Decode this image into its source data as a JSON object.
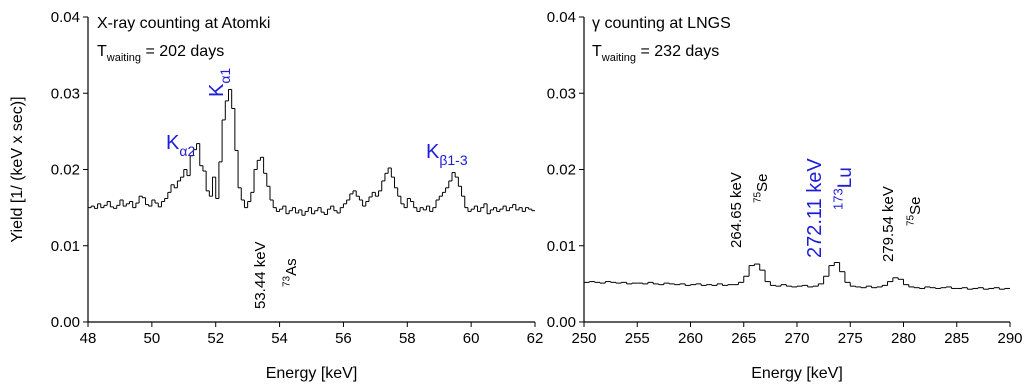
{
  "chart_data": [
    {
      "type": "histogram",
      "title": "X-ray counting at Atomki",
      "subtitle": {
        "main": "T",
        "sub": "waiting",
        "after": " = 202 days"
      },
      "xlabel": "Energy [keV]",
      "ylabel": "Yield [1/ (keV x sec)]",
      "color": "#000000",
      "xlim": [
        48,
        62
      ],
      "xticks": [
        48,
        50,
        52,
        54,
        56,
        58,
        60,
        62
      ],
      "ylim": [
        0,
        0.04
      ],
      "yticks": [
        {
          "value": 0,
          "label": "0.00"
        },
        {
          "value": 0.01,
          "label": "0.01"
        },
        {
          "value": 0.02,
          "label": "0.02"
        },
        {
          "value": 0.03,
          "label": "0.03"
        },
        {
          "value": 0.04,
          "label": "0.04"
        }
      ],
      "bins": [
        48.0,
        48.1,
        48.2,
        48.3,
        48.4,
        48.5,
        48.6,
        48.7,
        48.8,
        48.9,
        49.0,
        49.1,
        49.2,
        49.3,
        49.4,
        49.5,
        49.6,
        49.7,
        49.8,
        49.9,
        50.0,
        50.1,
        50.2,
        50.3,
        50.4,
        50.5,
        50.6,
        50.7,
        50.8,
        50.9,
        51.0,
        51.1,
        51.2,
        51.3,
        51.4,
        51.5,
        51.6,
        51.7,
        51.8,
        51.9,
        52.0,
        52.1,
        52.2,
        52.3,
        52.4,
        52.5,
        52.6,
        52.7,
        52.8,
        52.9,
        53.0,
        53.1,
        53.2,
        53.3,
        53.4,
        53.5,
        53.6,
        53.7,
        53.8,
        53.9,
        54.0,
        54.1,
        54.2,
        54.3,
        54.4,
        54.5,
        54.6,
        54.7,
        54.8,
        54.9,
        55.0,
        55.1,
        55.2,
        55.3,
        55.4,
        55.5,
        55.6,
        55.7,
        55.8,
        55.9,
        56.0,
        56.1,
        56.2,
        56.3,
        56.4,
        56.5,
        56.6,
        56.7,
        56.8,
        56.9,
        57.0,
        57.1,
        57.2,
        57.3,
        57.4,
        57.5,
        57.6,
        57.7,
        57.8,
        57.9,
        58.0,
        58.1,
        58.2,
        58.3,
        58.4,
        58.5,
        58.6,
        58.7,
        58.8,
        58.9,
        59.0,
        59.1,
        59.2,
        59.3,
        59.4,
        59.5,
        59.6,
        59.7,
        59.8,
        59.9,
        60.0,
        60.1,
        60.2,
        60.3,
        60.4,
        60.5,
        60.6,
        60.7,
        60.8,
        60.9,
        61.0,
        61.1,
        61.2,
        61.3,
        61.4,
        61.5,
        61.6,
        61.7,
        61.8,
        61.9,
        62.0
      ],
      "values": [
        0.015,
        0.0152,
        0.0149,
        0.0155,
        0.015,
        0.0153,
        0.0158,
        0.0151,
        0.0149,
        0.0153,
        0.016,
        0.0152,
        0.0155,
        0.0158,
        0.015,
        0.0156,
        0.0165,
        0.0163,
        0.0154,
        0.0152,
        0.016,
        0.0156,
        0.0151,
        0.0158,
        0.0162,
        0.017,
        0.018,
        0.0176,
        0.0185,
        0.019,
        0.02,
        0.0192,
        0.0218,
        0.0226,
        0.0234,
        0.0205,
        0.0198,
        0.0172,
        0.0165,
        0.019,
        0.0162,
        0.021,
        0.0265,
        0.029,
        0.0305,
        0.028,
        0.0225,
        0.0176,
        0.016,
        0.015,
        0.0158,
        0.017,
        0.02,
        0.0212,
        0.0216,
        0.0195,
        0.0178,
        0.016,
        0.015,
        0.0145,
        0.0148,
        0.0152,
        0.0142,
        0.0146,
        0.015,
        0.0143,
        0.0147,
        0.014,
        0.0145,
        0.015,
        0.0142,
        0.0146,
        0.015,
        0.0144,
        0.0141,
        0.0148,
        0.0152,
        0.0146,
        0.0143,
        0.015,
        0.0155,
        0.016,
        0.0168,
        0.0172,
        0.0165,
        0.016,
        0.0152,
        0.0158,
        0.0164,
        0.017,
        0.0165,
        0.0172,
        0.0185,
        0.0195,
        0.0202,
        0.019,
        0.0176,
        0.0165,
        0.0155,
        0.015,
        0.0162,
        0.0158,
        0.015,
        0.0145,
        0.015,
        0.0147,
        0.0152,
        0.0145,
        0.015,
        0.016,
        0.0165,
        0.017,
        0.0176,
        0.0185,
        0.0196,
        0.019,
        0.0178,
        0.0165,
        0.015,
        0.0145,
        0.0148,
        0.0152,
        0.0145,
        0.015,
        0.0155,
        0.0142,
        0.0147,
        0.015,
        0.0145,
        0.0148,
        0.0152,
        0.0146,
        0.015,
        0.0154,
        0.0147,
        0.015,
        0.0145,
        0.015,
        0.0148,
        0.0146
      ],
      "annotations": [
        {
          "color": "#1c1cd9",
          "parts": [
            {
              "text": "K"
            },
            {
              "text": "α2",
              "shift": "sub"
            }
          ]
        },
        {
          "color": "#1c1cd9",
          "parts": [
            {
              "text": "K"
            },
            {
              "text": "α1",
              "shift": "sub"
            }
          ]
        },
        {
          "color": "#1c1cd9",
          "parts": [
            {
              "text": "K"
            },
            {
              "text": "β1-3",
              "shift": "sub"
            }
          ]
        },
        {
          "color": "#000000",
          "parts": [
            {
              "text": "53.44 keV"
            }
          ]
        },
        {
          "color": "#000000",
          "parts": [
            {
              "text": "73",
              "shift": "sup"
            },
            {
              "text": "As"
            }
          ]
        }
      ]
    },
    {
      "type": "histogram",
      "title": "γ counting at LNGS",
      "subtitle": {
        "main": "T",
        "sub": "waiting",
        "after": " = 232 days"
      },
      "xlabel": "Energy [keV]",
      "color": "#000000",
      "xlim": [
        250,
        290
      ],
      "xticks": [
        250,
        255,
        260,
        265,
        270,
        275,
        280,
        285,
        290
      ],
      "ylim": [
        0,
        0.04
      ],
      "yticks": [
        {
          "value": 0,
          "label": "0.00"
        },
        {
          "value": 0.01,
          "label": "0.01"
        },
        {
          "value": 0.02,
          "label": "0.02"
        },
        {
          "value": 0.03,
          "label": "0.03"
        },
        {
          "value": 0.04,
          "label": "0.04"
        }
      ],
      "bins": [
        250,
        250.5,
        251,
        251.5,
        252,
        252.5,
        253,
        253.5,
        254,
        254.5,
        255,
        255.5,
        256,
        256.5,
        257,
        257.5,
        258,
        258.5,
        259,
        259.5,
        260,
        260.5,
        261,
        261.5,
        262,
        262.5,
        263,
        263.5,
        264,
        264.5,
        265,
        265.5,
        266,
        266.5,
        267,
        267.5,
        268,
        268.5,
        269,
        269.5,
        270,
        270.5,
        271,
        271.5,
        272,
        272.5,
        273,
        273.5,
        274,
        274.5,
        275,
        275.5,
        276,
        276.5,
        277,
        277.5,
        278,
        278.5,
        279,
        279.5,
        280,
        280.5,
        281,
        281.5,
        282,
        282.5,
        283,
        283.5,
        284,
        284.5,
        285,
        285.5,
        286,
        286.5,
        287,
        287.5,
        288,
        288.5,
        289,
        289.5,
        290
      ],
      "values": [
        0.0052,
        0.0053,
        0.0052,
        0.0051,
        0.0053,
        0.0052,
        0.0051,
        0.0052,
        0.005,
        0.0051,
        0.0051,
        0.005,
        0.0052,
        0.005,
        0.0049,
        0.0051,
        0.005,
        0.0049,
        0.005,
        0.0048,
        0.0049,
        0.005,
        0.0048,
        0.0049,
        0.0048,
        0.005,
        0.0048,
        0.0049,
        0.0049,
        0.0052,
        0.006,
        0.0074,
        0.0076,
        0.0068,
        0.0053,
        0.0048,
        0.0047,
        0.0049,
        0.0047,
        0.0046,
        0.0047,
        0.0048,
        0.0046,
        0.0047,
        0.005,
        0.006,
        0.0074,
        0.0078,
        0.0066,
        0.0052,
        0.0047,
        0.0046,
        0.0045,
        0.0047,
        0.0045,
        0.0046,
        0.0048,
        0.0053,
        0.0058,
        0.0056,
        0.0049,
        0.0046,
        0.0045,
        0.0044,
        0.0046,
        0.0045,
        0.0044,
        0.0045,
        0.0046,
        0.0044,
        0.0044,
        0.0045,
        0.0043,
        0.0044,
        0.0045,
        0.0043,
        0.0044,
        0.0045,
        0.0043,
        0.0044
      ],
      "annotations": [
        {
          "color": "#000000",
          "parts": [
            {
              "text": "264.65 keV"
            }
          ]
        },
        {
          "color": "#000000",
          "parts": [
            {
              "text": "75",
              "shift": "sup"
            },
            {
              "text": "Se"
            }
          ]
        },
        {
          "color": "#1c1cd9",
          "parts": [
            {
              "text": "272.11 keV"
            }
          ]
        },
        {
          "color": "#1c1cd9",
          "parts": [
            {
              "text": "173",
              "shift": "sup"
            },
            {
              "text": "Lu"
            }
          ]
        },
        {
          "color": "#000000",
          "parts": [
            {
              "text": "279.54 keV"
            }
          ]
        },
        {
          "color": "#000000",
          "parts": [
            {
              "text": "75",
              "shift": "sup"
            },
            {
              "text": "Se"
            }
          ]
        }
      ]
    }
  ]
}
